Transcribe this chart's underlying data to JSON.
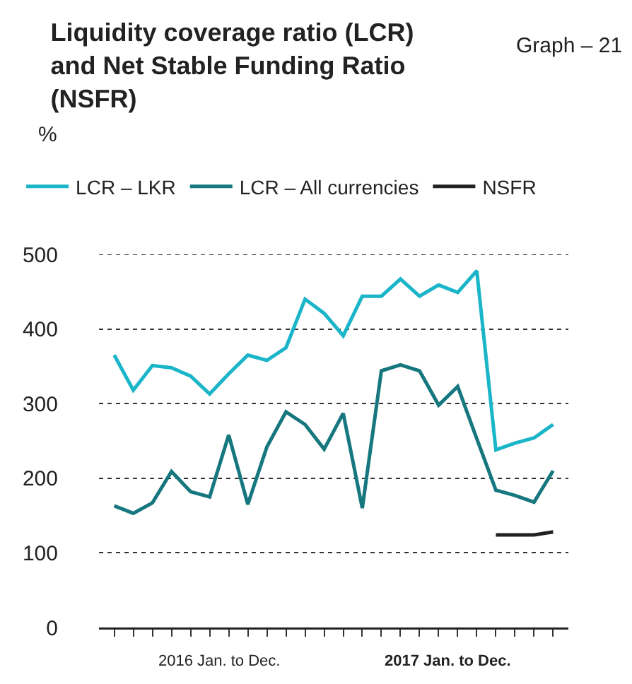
{
  "chart_data": {
    "type": "line",
    "title": "Liquidity coverage ratio (LCR) and Net Stable Funding Ratio (NSFR)",
    "ylabel": "%",
    "annotations": [
      "Graph – 21",
      "2016 Jan. to Dec.",
      "2017 Jan. to Dec."
    ],
    "categories": [
      null,
      null,
      null,
      null,
      null,
      null,
      null,
      null,
      null,
      null,
      null,
      null,
      null,
      null,
      null,
      null,
      null,
      null,
      null,
      null,
      null,
      null,
      null,
      null
    ],
    "series": [
      {
        "name": "LCR – LKR",
        "color": "#1ab5c8",
        "values": [
          365,
          318,
          351,
          348,
          337,
          313,
          340,
          365,
          358,
          375,
          440,
          421,
          391,
          444,
          444,
          467,
          444,
          459,
          449,
          478,
          238,
          247,
          254,
          272
        ]
      },
      {
        "name": "LCR – All currencies",
        "color": "#17777f",
        "values": [
          163,
          153,
          167,
          209,
          182,
          175,
          258,
          165,
          242,
          289,
          272,
          239,
          287,
          160,
          344,
          352,
          344,
          298,
          323,
          253,
          184,
          177,
          168,
          210
        ]
      },
      {
        "name": "NSFR",
        "color": "#222222",
        "values": [
          null,
          null,
          null,
          null,
          null,
          null,
          null,
          null,
          null,
          null,
          null,
          null,
          null,
          null,
          null,
          null,
          null,
          null,
          null,
          null,
          124,
          124,
          124,
          128
        ]
      }
    ],
    "ylim": [
      0,
      500
    ],
    "yticks": [
      0,
      100,
      200,
      300,
      400,
      500
    ],
    "grid": "y",
    "legend": "top left",
    "tick_labels": "y",
    "marker": "none",
    "line_style": "solid"
  }
}
